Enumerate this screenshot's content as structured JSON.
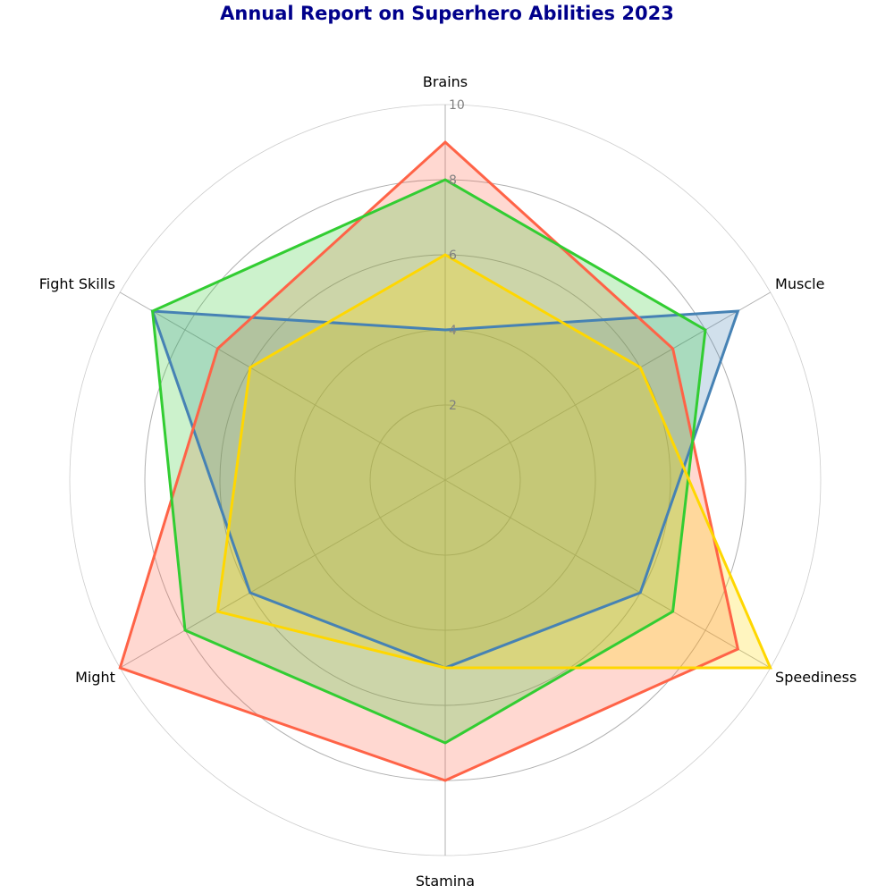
{
  "chart_data": {
    "type": "radar",
    "title": "Annual Report on Superhero Abilities 2023",
    "title_color": "#00008b",
    "categories": [
      "Brains",
      "Muscle",
      "Speediness",
      "Stamina",
      "Might",
      "Fight Skills"
    ],
    "rlim": [
      0,
      10
    ],
    "rticks": [
      2,
      4,
      6,
      8,
      10
    ],
    "grid": true,
    "series": [
      {
        "values": [
          4,
          9,
          6,
          5,
          6,
          9
        ],
        "color": "#4682b4",
        "fill_opacity": 0.25
      },
      {
        "values": [
          9,
          7,
          9,
          8,
          10,
          7
        ],
        "color": "#ff6347",
        "fill_opacity": 0.25
      },
      {
        "values": [
          8,
          8,
          7,
          7,
          8,
          9
        ],
        "color": "#32cd32",
        "fill_opacity": 0.25
      },
      {
        "values": [
          6,
          6,
          10,
          5,
          7,
          6
        ],
        "color": "#ffd700",
        "fill_opacity": 0.25
      }
    ]
  }
}
